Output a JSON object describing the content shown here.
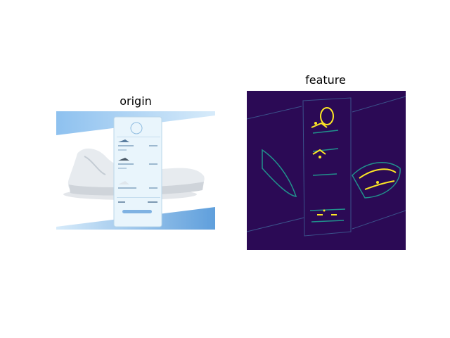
{
  "panels": {
    "origin": {
      "title": "origin"
    },
    "feature": {
      "title": "feature"
    }
  },
  "colors": {
    "heatmap_background": "#2b0a55",
    "heatmap_low": "#3b528b",
    "heatmap_mid": "#21918c",
    "heatmap_high": "#fde725",
    "banner_blue": "#6aa6e0",
    "card_blue": "#d9ecf8",
    "button_blue": "#7fb2e2"
  }
}
